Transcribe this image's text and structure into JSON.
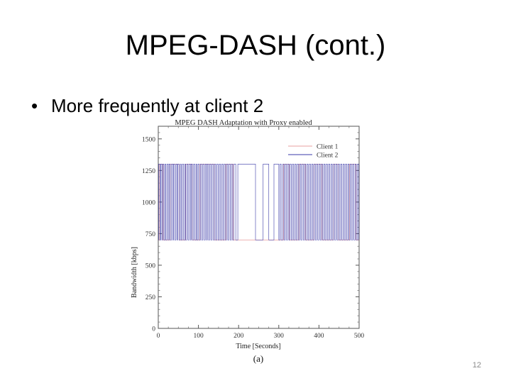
{
  "slide": {
    "title": "MPEG-DASH (cont.)",
    "bullet": "More frequently at client 2",
    "page_number": "12"
  },
  "chart_data": {
    "type": "line",
    "title": "MPEG DASH Adaptation with Proxy enabled",
    "xlabel": "Time [Seconds]",
    "ylabel": "Bandwidth [kbps]",
    "caption": "(a)",
    "xlim": [
      0,
      500
    ],
    "ylim": [
      0,
      1600
    ],
    "xticks": [
      0,
      100,
      200,
      300,
      400,
      500
    ],
    "yticks": [
      0,
      250,
      500,
      750,
      1000,
      1250,
      1500
    ],
    "grid": false,
    "legend_position": "top-right",
    "levels": [
      700,
      1300
    ],
    "series": [
      {
        "name": "Client 1",
        "color": "#e8a0a0",
        "switch_times": [
          3,
          12,
          30,
          52,
          68,
          85,
          104,
          140,
          168,
          186,
          312,
          326,
          350,
          366,
          388,
          408,
          436,
          448,
          476,
          492
        ]
      },
      {
        "name": "Client 2",
        "color": "#3a3aa8",
        "switch_times": [
          1,
          4,
          6,
          9,
          11,
          14,
          17,
          19,
          22,
          25,
          27,
          30,
          33,
          36,
          38,
          41,
          44,
          47,
          49,
          52,
          55,
          57,
          60,
          63,
          66,
          68,
          71,
          74,
          77,
          80,
          82,
          85,
          88,
          91,
          94,
          96,
          99,
          102,
          105,
          108,
          111,
          114,
          117,
          120,
          122,
          125,
          128,
          131,
          134,
          137,
          140,
          143,
          146,
          149,
          152,
          155,
          158,
          161,
          164,
          167,
          170,
          173,
          176,
          179,
          182,
          185,
          188,
          193,
          198,
          242,
          261,
          275,
          288,
          300,
          303,
          306,
          310,
          313,
          316,
          319,
          322,
          325,
          328,
          331,
          334,
          337,
          340,
          343,
          346,
          349,
          352,
          355,
          358,
          361,
          364,
          367,
          370,
          373,
          376,
          379,
          382,
          385,
          388,
          391,
          394,
          397,
          400,
          403,
          406,
          409,
          412,
          415,
          418,
          421,
          424,
          427,
          430,
          433,
          436,
          439,
          442,
          445,
          448,
          451,
          454,
          457,
          460,
          463,
          466,
          469,
          472,
          475,
          478,
          481,
          484,
          487,
          490,
          493,
          496,
          499
        ]
      }
    ]
  }
}
